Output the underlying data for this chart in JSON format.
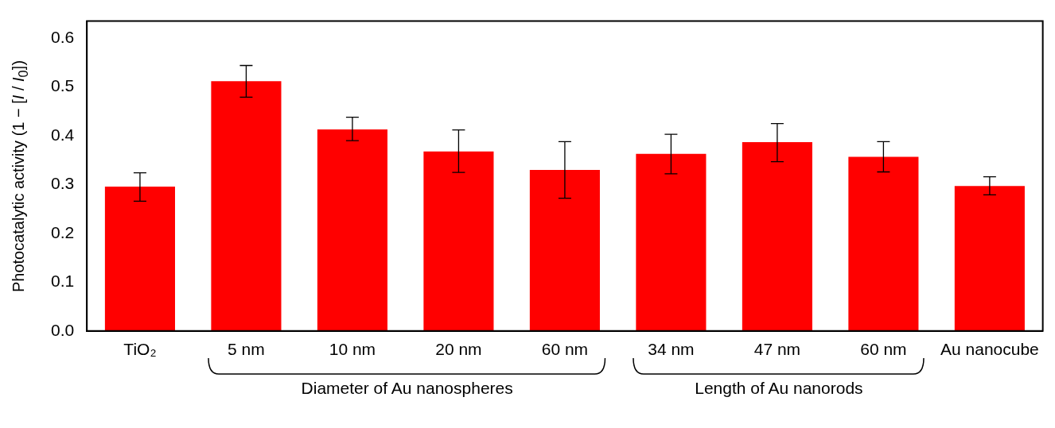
{
  "chart_data": {
    "type": "bar",
    "ylabel": "Photocatalytic activity (1 − [I / I$_{0}$])",
    "categories": [
      "TiO₂",
      "5 nm",
      "10 nm",
      "20 nm",
      "60 nm",
      "34 nm",
      "47 nm",
      "60 nm",
      "Au nanocube"
    ],
    "values": [
      0.296,
      0.512,
      0.413,
      0.368,
      0.33,
      0.363,
      0.387,
      0.357,
      0.297
    ],
    "errors": [
      [
        0.266,
        0.324
      ],
      [
        0.479,
        0.544
      ],
      [
        0.39,
        0.438
      ],
      [
        0.325,
        0.412
      ],
      [
        0.272,
        0.388
      ],
      [
        0.322,
        0.403
      ],
      [
        0.347,
        0.425
      ],
      [
        0.326,
        0.388
      ],
      [
        0.279,
        0.316
      ]
    ],
    "color": "#ff0000",
    "ylim": [
      0,
      0.635
    ],
    "yticks": [
      {
        "value": 0,
        "label": "0.0"
      },
      {
        "value": 0.1,
        "label": "0.1"
      },
      {
        "value": 0.2,
        "label": "0.2"
      },
      {
        "value": 0.3,
        "label": "0.3"
      },
      {
        "value": 0.4,
        "label": "0.4"
      },
      {
        "value": 0.5,
        "label": "0.5"
      },
      {
        "value": 0.6,
        "label": "0.6"
      }
    ],
    "grid": false,
    "legend": false,
    "annotations": [
      "Diameter of Au nanospheres",
      "Length of Au nanorods"
    ]
  }
}
